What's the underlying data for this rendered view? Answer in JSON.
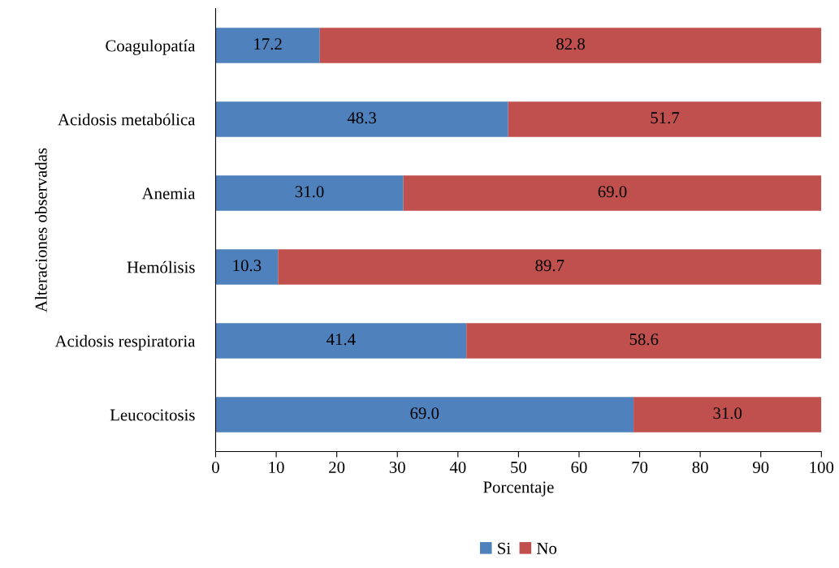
{
  "chart_data": {
    "type": "bar",
    "orientation": "horizontal",
    "stacked": true,
    "xlabel": "Porcentaje",
    "ylabel": "Alteraciones observadas",
    "categories": [
      "Coagulopatía",
      "Acidosis metabólica",
      "Anemia",
      "Hemólisis",
      "Acidosis respiratoria",
      "Leucocitosis"
    ],
    "series": [
      {
        "name": "Si",
        "color": "#4f81bd",
        "values": [
          17.2,
          48.3,
          31.0,
          10.3,
          41.4,
          69.0
        ],
        "value_labels": [
          "17.2",
          "48.3",
          "31.0",
          "10.3",
          "41.4",
          "69.0"
        ]
      },
      {
        "name": "No",
        "color": "#c0504d",
        "values": [
          82.8,
          51.7,
          69.0,
          89.7,
          58.6,
          31.0
        ],
        "value_labels": [
          "82.8",
          "51.7",
          "69.0",
          "89.7",
          "58.6",
          "31.0"
        ]
      }
    ],
    "xlim": [
      0,
      100
    ],
    "xticks": [
      0,
      10,
      20,
      30,
      40,
      50,
      60,
      70,
      80,
      90,
      100
    ],
    "grid": false,
    "legend": "bottom"
  }
}
